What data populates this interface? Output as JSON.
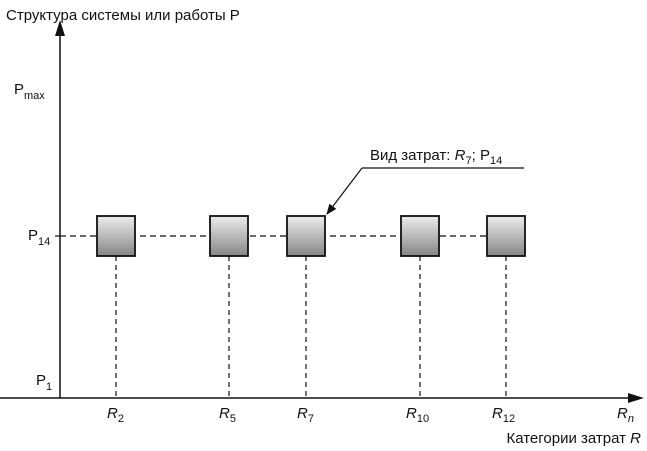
{
  "y_axis": {
    "title": "Структура системы или работы P",
    "levels": [
      {
        "main": "P",
        "sub": "max"
      },
      {
        "main": "P",
        "sub": "14"
      },
      {
        "main": "P",
        "sub": "1"
      }
    ]
  },
  "x_axis": {
    "title_text": "Категории затрат ",
    "title_var": "R",
    "end_label": {
      "main": "R",
      "sub": "n"
    },
    "ticks": [
      {
        "main": "R",
        "sub": "2"
      },
      {
        "main": "R",
        "sub": "5"
      },
      {
        "main": "R",
        "sub": "7"
      },
      {
        "main": "R",
        "sub": "10"
      },
      {
        "main": "R",
        "sub": "12"
      }
    ]
  },
  "callout": {
    "prefix": "Вид затрат: ",
    "r_main": "R",
    "r_sub": "7",
    "sep": "; ",
    "p_main": "P",
    "p_sub": "14"
  },
  "colors": {
    "line": "#111111",
    "box_fill_light": "#e6e6e6",
    "box_fill_dark": "#8a8a8a"
  }
}
